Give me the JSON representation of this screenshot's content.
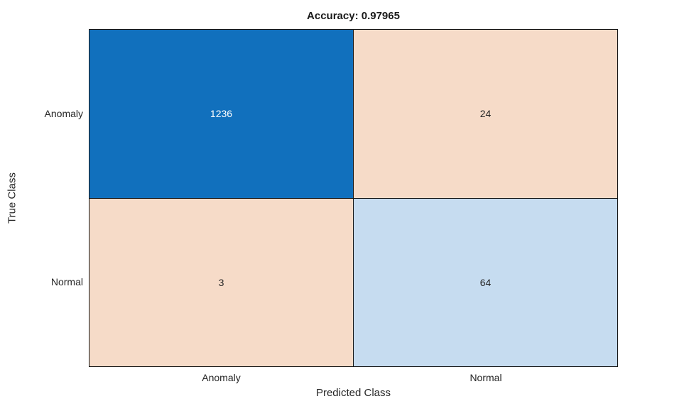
{
  "chart_data": {
    "type": "heatmap",
    "subtype": "confusion-matrix",
    "title": "Accuracy: 0.97965",
    "xlabel": "Predicted Class",
    "ylabel": "True Class",
    "x_categories": [
      "Anomaly",
      "Normal"
    ],
    "y_categories": [
      "Anomaly",
      "Normal"
    ],
    "matrix": [
      [
        1236,
        24
      ],
      [
        3,
        64
      ]
    ],
    "cells": [
      {
        "row": "Anomaly",
        "col": "Anomaly",
        "value": "1236",
        "bg": "#1170bd",
        "fg": "#ffffff"
      },
      {
        "row": "Anomaly",
        "col": "Normal",
        "value": "24",
        "bg": "#f6dbc8",
        "fg": "#262626"
      },
      {
        "row": "Normal",
        "col": "Anomaly",
        "value": "3",
        "bg": "#f6dbc8",
        "fg": "#262626"
      },
      {
        "row": "Normal",
        "col": "Normal",
        "value": "64",
        "bg": "#c6dcf0",
        "fg": "#262626"
      }
    ],
    "colors": {
      "diagonal_strong": "#1170bd",
      "diagonal_weak": "#c6dcf0",
      "off_diagonal": "#f6dbc8",
      "grid_line": "#141414",
      "text": "#262626",
      "background": "#ffffff"
    },
    "legend": {
      "visible": false
    },
    "grid": "cell-borders"
  }
}
